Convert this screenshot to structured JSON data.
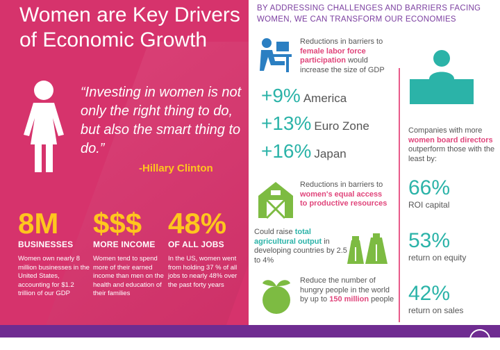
{
  "left": {
    "title_line1": "Women are Key Drivers",
    "title_line2": "of Economic Growth",
    "quote": "“Investing in women is not only the right thing to do, but also the smart thing to do.”",
    "author": "-Hillary Clinton",
    "stats": [
      {
        "value": "8M",
        "label": "BUSINESSES",
        "desc": "Women own nearly 8 million businesses in the United States, accounting for $1.2 trillion of our GDP"
      },
      {
        "value": "$$$",
        "label": "MORE INCOME",
        "desc": "Women tend to spend more of their earned income than men on the health and education of their families"
      },
      {
        "value": "48%",
        "label": "OF ALL JOBS",
        "desc": "In the US, women went from holding 37 % of all jobs to nearly 48% over the past forty years"
      }
    ]
  },
  "right": {
    "header": "BY ADDRESSING CHALLENGES AND BARRIERS FACING WOMEN, WE CAN TRANSFORM OUR ECONOMIES",
    "labor": {
      "pre": "Reductions in barriers to ",
      "highlight": "female labor force participation",
      "post": " would increase the size of GDP"
    },
    "gdp": [
      {
        "value": "+9%",
        "region": "America"
      },
      {
        "value": "+13%",
        "region": "Euro Zone"
      },
      {
        "value": "+16%",
        "region": "Japan"
      }
    ],
    "farm": {
      "pre": "Reductions in barriers to ",
      "highlight": "women's equal access to productive resources"
    },
    "agri": {
      "pre": "Could raise ",
      "highlight": "total agricultural output",
      "post": " in developing countries by 2.5 to 4%"
    },
    "hunger": {
      "pre": "Reduce the number of hungry people in the world by up to ",
      "highlight": "150 million",
      "post": " people"
    },
    "board": {
      "pre": "Companies with more ",
      "highlight": "women board directors",
      "post": " outperform those with the least by:"
    },
    "board_stats": [
      {
        "value": "66%",
        "label": "ROI capital"
      },
      {
        "value": "53%",
        "label": "return on equity"
      },
      {
        "value": "42%",
        "label": "return on sales"
      }
    ]
  },
  "colors": {
    "pink": "#d6336c",
    "yellow": "#ffc61e",
    "teal": "#2bb3a8",
    "purple": "#6f2c91"
  }
}
